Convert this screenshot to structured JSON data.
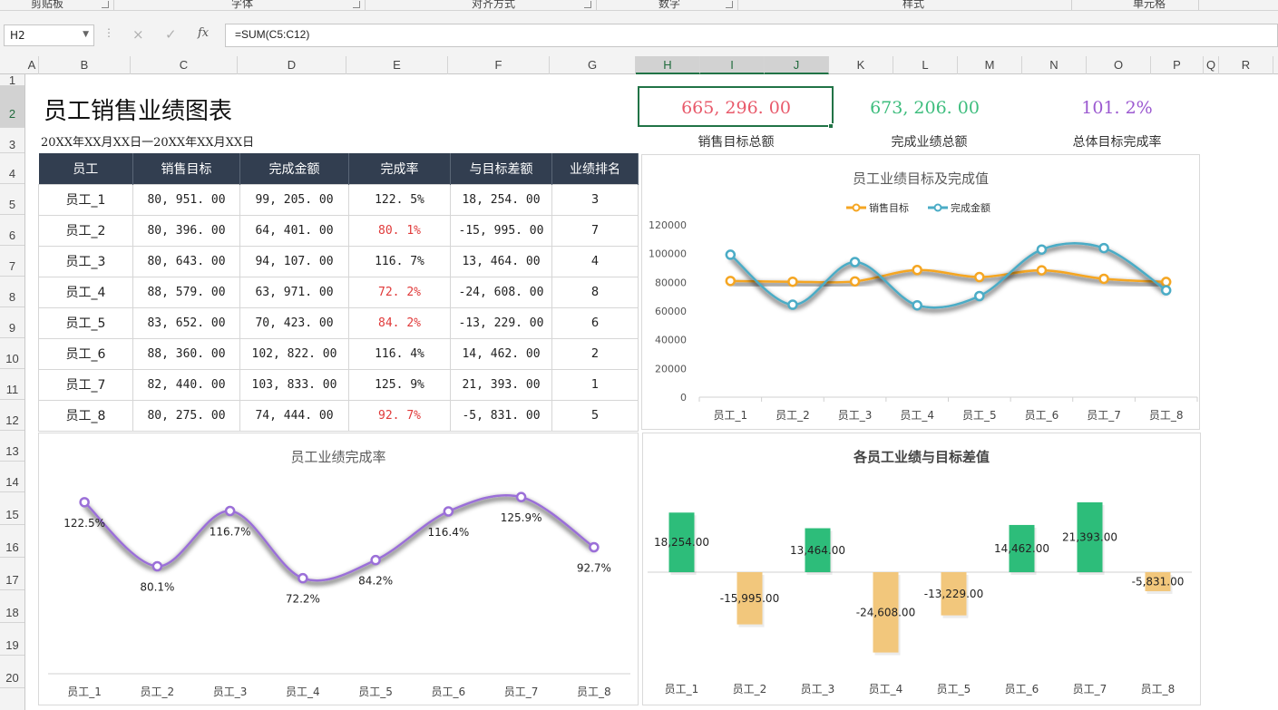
{
  "ribbon": {
    "groups": [
      {
        "label": "剪贴板",
        "x": 34
      },
      {
        "label": "字体",
        "x": 255
      },
      {
        "label": "对齐方式",
        "x": 520
      },
      {
        "label": "数字",
        "x": 726
      },
      {
        "label": "样式",
        "x": 995
      },
      {
        "label": "单元格",
        "x": 1249
      }
    ]
  },
  "formula_bar": {
    "name_box": "H2",
    "cancel_icon": "×",
    "enter_icon": "✓",
    "fx_icon": "fx",
    "formula": "=SUM(C5:C12)"
  },
  "sheet": {
    "columns": [
      "A",
      "B",
      "C",
      "D",
      "E",
      "F",
      "G",
      "H",
      "I",
      "J",
      "K",
      "L",
      "M",
      "N",
      "O",
      "P",
      "Q",
      "R"
    ],
    "rows": [
      "1",
      "2",
      "3",
      "4",
      "5",
      "6",
      "7",
      "8",
      "9",
      "10",
      "11",
      "12",
      "13",
      "14",
      "15",
      "16",
      "17",
      "18",
      "19",
      "20"
    ],
    "selected_cell": "H2"
  },
  "report": {
    "title": "员工销售业绩图表",
    "date_range": "20XX年XX月XX日一20XX年XX月XX日",
    "kpis": [
      {
        "value": "665, 296. 00",
        "label": "销售目标总额",
        "color": "#e8596a"
      },
      {
        "value": "673, 206. 00",
        "label": "完成业绩总额",
        "color": "#3dbd7d"
      },
      {
        "value": "101. 2%",
        "label": "总体目标完成率",
        "color": "#9b59d0"
      }
    ]
  },
  "table": {
    "headers": [
      "员工",
      "销售目标",
      "完成金额",
      "完成率",
      "与目标差额",
      "业绩排名"
    ],
    "rows": [
      {
        "name": "员工_1",
        "target": "80, 951. 00",
        "done": "99, 205. 00",
        "rate": "122. 5%",
        "diff": "18, 254. 00",
        "rank": "3",
        "low": false
      },
      {
        "name": "员工_2",
        "target": "80, 396. 00",
        "done": "64, 401. 00",
        "rate": "80. 1%",
        "diff": "-15, 995. 00",
        "rank": "7",
        "low": true
      },
      {
        "name": "员工_3",
        "target": "80, 643. 00",
        "done": "94, 107. 00",
        "rate": "116. 7%",
        "diff": "13, 464. 00",
        "rank": "4",
        "low": false
      },
      {
        "name": "员工_4",
        "target": "88, 579. 00",
        "done": "63, 971. 00",
        "rate": "72. 2%",
        "diff": "-24, 608. 00",
        "rank": "8",
        "low": true
      },
      {
        "name": "员工_5",
        "target": "83, 652. 00",
        "done": "70, 423. 00",
        "rate": "84. 2%",
        "diff": "-13, 229. 00",
        "rank": "6",
        "low": true
      },
      {
        "name": "员工_6",
        "target": "88, 360. 00",
        "done": "102, 822. 00",
        "rate": "116. 4%",
        "diff": "14, 462. 00",
        "rank": "2",
        "low": false
      },
      {
        "name": "员工_7",
        "target": "82, 440. 00",
        "done": "103, 833. 00",
        "rate": "125. 9%",
        "diff": "21, 393. 00",
        "rank": "1",
        "low": false
      },
      {
        "name": "员工_8",
        "target": "80, 275. 00",
        "done": "74, 444. 00",
        "rate": "92. 7%",
        "diff": "-5, 831. 00",
        "rank": "5",
        "low": true
      }
    ]
  },
  "chart_data": [
    {
      "type": "line",
      "title": "员工业绩目标及完成值",
      "categories": [
        "员工_1",
        "员工_2",
        "员工_3",
        "员工_4",
        "员工_5",
        "员工_6",
        "员工_7",
        "员工_8"
      ],
      "series": [
        {
          "name": "销售目标",
          "values": [
            80951,
            80396,
            80643,
            88579,
            83652,
            88360,
            82440,
            80275
          ],
          "color": "#f5a623"
        },
        {
          "name": "完成金额",
          "values": [
            99205,
            64401,
            94107,
            63971,
            70423,
            102822,
            103833,
            74444
          ],
          "color": "#4bacc6"
        }
      ],
      "yticks": [
        "0",
        "20000",
        "40000",
        "60000",
        "80000",
        "100000",
        "120000"
      ],
      "ylim": [
        0,
        120000
      ],
      "legend": "top"
    },
    {
      "type": "line",
      "title": "员工业绩完成率",
      "categories": [
        "员工_1",
        "员工_2",
        "员工_3",
        "员工_4",
        "员工_5",
        "员工_6",
        "员工_7",
        "员工_8"
      ],
      "values": [
        122.5,
        80.1,
        116.7,
        72.2,
        84.2,
        116.4,
        125.9,
        92.7
      ],
      "labels": [
        "122.5%",
        "80.1%",
        "116.7%",
        "72.2%",
        "84.2%",
        "116.4%",
        "125.9%",
        "92.7%"
      ],
      "color": "#9b6fd8"
    },
    {
      "type": "bar",
      "title": "各员工业绩与目标差值",
      "categories": [
        "员工_1",
        "员工_2",
        "员工_3",
        "员工_4",
        "员工_5",
        "员工_6",
        "员工_7",
        "员工_8"
      ],
      "values": [
        18254,
        -15995,
        13464,
        -24608,
        -13229,
        14462,
        21393,
        -5831
      ],
      "labels": [
        "18,254.00",
        "-15,995.00",
        "13,464.00",
        "-24,608.00",
        "-13,229.00",
        "14,462.00",
        "21,393.00",
        "-5,831.00"
      ],
      "positive_color": "#2dbd7a",
      "negative_color": "#f2c77c"
    }
  ]
}
